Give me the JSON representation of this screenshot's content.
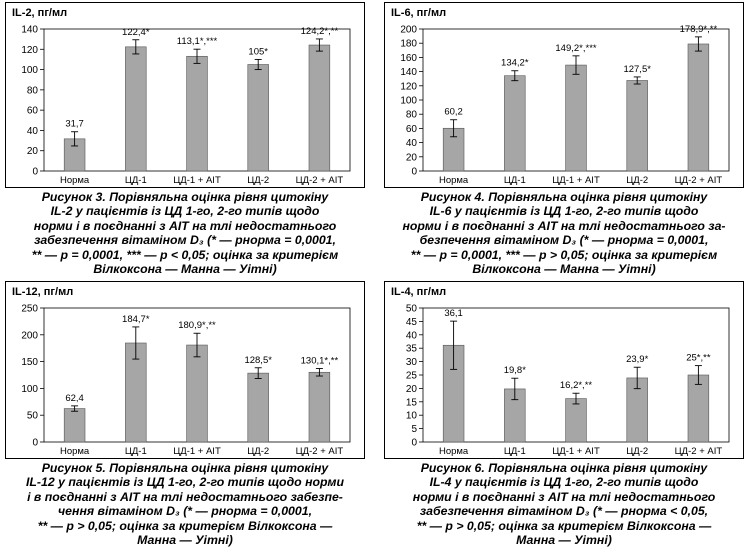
{
  "chart_data": [
    {
      "type": "bar",
      "unit_label": "IL-2, пг/мл",
      "categories": [
        "Норма",
        "ЦД-1",
        "ЦД-1 + АІТ",
        "ЦД-2",
        "ЦД-2 + АІТ"
      ],
      "values": [
        31.7,
        122.4,
        113.1,
        105,
        124.2
      ],
      "errors": [
        7,
        7,
        7,
        5,
        6
      ],
      "value_labels": [
        "31,7",
        "122,4*",
        "113,1*,***",
        "105*",
        "124,2*,**"
      ],
      "ylim": [
        0,
        140
      ],
      "ticks": [
        0,
        20,
        40,
        60,
        80,
        100,
        120,
        140
      ],
      "caption": [
        {
          "text": "Рисунок 3. Порівняльна оцінка рівня цитокіну"
        },
        {
          "text": "IL-2 у пацієнтів із ЦД 1-го, 2-го типів щодо"
        },
        {
          "text": "норми і в поєднанні з АІТ на тлі недостатнього"
        },
        {
          "text": "забезпечення вітаміном D₃ (* — pнорма = 0,0001,"
        },
        {
          "text": "** — p = 0,0001, *** — p < 0,05; оцінка за критерієм"
        },
        {
          "text": "Вілкоксона — Манна — Уітні)"
        }
      ]
    },
    {
      "type": "bar",
      "unit_label": "IL-6, пг/мл",
      "categories": [
        "Норма",
        "ЦД-1",
        "ЦД-1 + АІТ",
        "ЦД-2",
        "ЦД-2 + АІТ"
      ],
      "values": [
        60.2,
        134.2,
        149.2,
        127.5,
        178.9
      ],
      "errors": [
        12,
        7,
        13,
        5,
        10
      ],
      "value_labels": [
        "60,2",
        "134,2*",
        "149,2*,***",
        "127,5*",
        "178,9*,**"
      ],
      "ylim": [
        0,
        200
      ],
      "ticks": [
        0,
        20,
        40,
        60,
        80,
        100,
        120,
        140,
        160,
        180,
        200
      ],
      "caption": [
        {
          "text": "Рисунок 4. Порівняльна оцінка рівня цитокіну"
        },
        {
          "text": "IL-6 у пацієнтів із ЦД 1-го, 2-го типів щодо"
        },
        {
          "text": "норми і в поєднанні з АІТ на тлі недостатнього за-"
        },
        {
          "text": "безпечення вітаміном D₃ (* — pнорма = 0,0001,"
        },
        {
          "text": "** — p = 0,0001, *** — p > 0,05; оцінка за критерієм"
        },
        {
          "text": "Вілкоксона — Манна — Уітні)"
        }
      ]
    },
    {
      "type": "bar",
      "unit_label": "IL-12, пг/мл",
      "categories": [
        "Норма",
        "ЦД-1",
        "ЦД-1 + АІТ",
        "ЦД-2",
        "ЦД-2 + АІТ"
      ],
      "values": [
        62.4,
        184.7,
        180.9,
        128.5,
        130.1
      ],
      "errors": [
        5,
        30,
        22,
        10,
        7
      ],
      "value_labels": [
        "62,4",
        "184,7*",
        "180,9*,**",
        "128,5*",
        "130,1*,**"
      ],
      "ylim": [
        0,
        250
      ],
      "ticks": [
        0,
        50,
        100,
        150,
        200,
        250
      ],
      "caption": [
        {
          "text": "Рисунок 5. Порівняльна оцінка рівня цитокіну"
        },
        {
          "text": "IL-12 у пацієнтів із ЦД 1-го, 2-го типів щодо норми"
        },
        {
          "text": "і в поєднанні з АІТ на тлі недостатнього забезпе-"
        },
        {
          "text": "чення вітаміном D₃ (* — pнорма = 0,0001,"
        },
        {
          "text": "** — p > 0,05; оцінка за критерієм Вілкоксона —"
        },
        {
          "text": "Манна — Уітні)"
        }
      ]
    },
    {
      "type": "bar",
      "unit_label": "IL-4, пг/мл",
      "categories": [
        "Норма",
        "ЦД-1",
        "ЦД-1 + АІТ",
        "ЦД-2",
        "ЦД-2 + АІТ"
      ],
      "values": [
        36.1,
        19.8,
        16.2,
        23.9,
        25
      ],
      "errors": [
        9,
        4,
        2,
        4,
        3.5
      ],
      "value_labels": [
        "36,1",
        "19,8*",
        "16,2*,**",
        "23,9*",
        "25*,**"
      ],
      "ylim": [
        0,
        50
      ],
      "ticks": [
        0,
        5,
        10,
        15,
        20,
        25,
        30,
        35,
        40,
        45,
        50
      ],
      "caption": [
        {
          "text": "Рисунок 6. Порівняльна оцінка рівня цитокіну"
        },
        {
          "text": "IL-4 у пацієнтів із ЦД 1-го, 2-го типів щодо"
        },
        {
          "text": "норми і в поєднанні з АІТ на тлі недостатнього"
        },
        {
          "text": "забезпечення вітаміном D₃ (* — pнорма < 0,05,"
        },
        {
          "text": "** — p > 0,05; оцінка за критерієм Вілкоксона —"
        },
        {
          "text": "Манна — Уітні)"
        }
      ]
    }
  ]
}
